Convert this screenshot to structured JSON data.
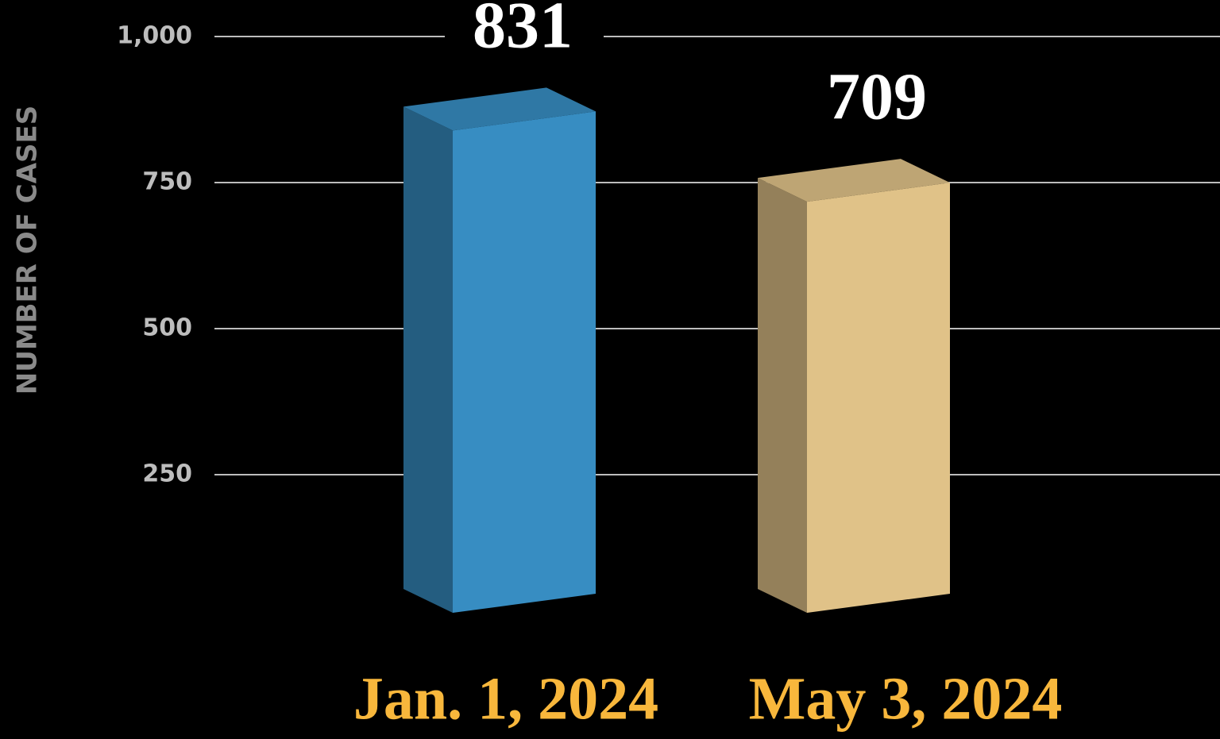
{
  "chart_data": {
    "type": "bar3d",
    "y_axis_label": "NUMBER OF CASES",
    "categories": [
      "Jan. 1, 2024",
      "May 3, 2024"
    ],
    "values": [
      831,
      709
    ],
    "colors": [
      "#378dc2",
      "#e0c288"
    ],
    "ylim": [
      0,
      1000
    ],
    "yticks": [
      250,
      500,
      750,
      {
        "value": 1000,
        "label": "1,000"
      }
    ],
    "grid": true
  }
}
